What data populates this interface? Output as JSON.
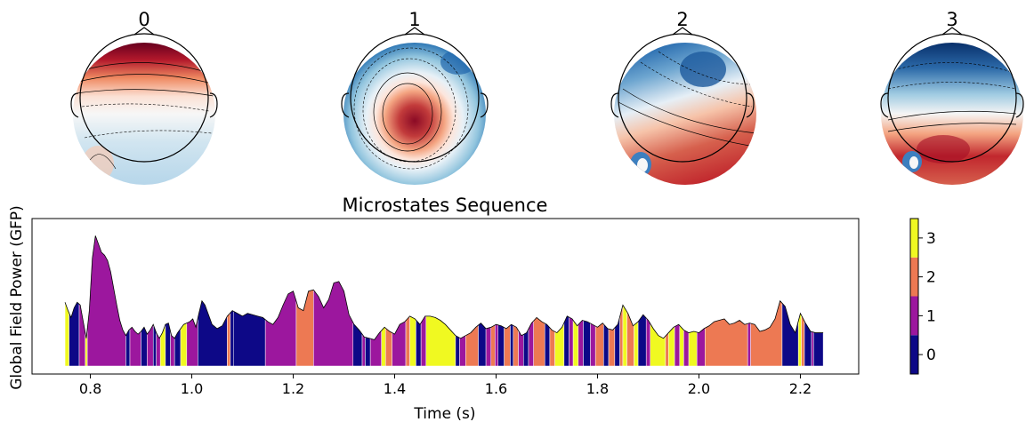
{
  "figure": {
    "topomaps": [
      {
        "label": "0",
        "pattern": "frontal-positive"
      },
      {
        "label": "1",
        "pattern": "central-positive"
      },
      {
        "label": "2",
        "pattern": "posterior-positive-anterior-negative"
      },
      {
        "label": "3",
        "pattern": "anterior-negative-posterior-positive"
      }
    ],
    "colormap_topomap": "RdBu_r",
    "colorbar": {
      "ticks": [
        "0",
        "1",
        "2",
        "3"
      ],
      "colors": [
        "#0d0887",
        "#9c179e",
        "#ed7953",
        "#f0f921"
      ]
    }
  },
  "chart_data": {
    "type": "area",
    "title": "Microstates Sequence",
    "xlabel": "Time (s)",
    "ylabel": "Global Field Power (GFP)",
    "xlim": [
      0.685,
      2.315
    ],
    "ylim": [
      0,
      1
    ],
    "xticks": [
      0.8,
      1.0,
      1.2,
      1.4,
      1.6,
      1.8,
      2.0,
      2.2
    ],
    "xtick_labels": [
      "0.8",
      "1.0",
      "1.2",
      "1.4",
      "1.6",
      "1.8",
      "2.0",
      "2.2"
    ],
    "state_colors": {
      "0": "#0d0887",
      "1": "#9c179e",
      "2": "#ed7953",
      "3": "#f0f921"
    },
    "gfp": {
      "x": [
        0.75,
        0.756,
        0.762,
        0.768,
        0.774,
        0.78,
        0.786,
        0.792,
        0.798,
        0.804,
        0.81,
        0.816,
        0.822,
        0.828,
        0.834,
        0.84,
        0.846,
        0.852,
        0.858,
        0.864,
        0.87,
        0.876,
        0.882,
        0.888,
        0.894,
        0.9,
        0.906,
        0.912,
        0.918,
        0.924,
        0.93,
        0.936,
        0.942,
        0.948,
        0.954,
        0.96,
        0.966,
        0.972,
        0.978,
        0.984,
        0.99,
        0.996,
        1.002,
        1.008,
        1.014,
        1.02,
        1.026,
        1.032,
        1.04,
        1.05,
        1.06,
        1.07,
        1.08,
        1.09,
        1.1,
        1.11,
        1.12,
        1.13,
        1.14,
        1.15,
        1.16,
        1.17,
        1.18,
        1.19,
        1.2,
        1.21,
        1.22,
        1.23,
        1.24,
        1.25,
        1.26,
        1.27,
        1.28,
        1.29,
        1.3,
        1.31,
        1.32,
        1.33,
        1.34,
        1.35,
        1.36,
        1.37,
        1.38,
        1.39,
        1.4,
        1.41,
        1.42,
        1.43,
        1.44,
        1.45,
        1.46,
        1.47,
        1.48,
        1.49,
        1.5,
        1.51,
        1.52,
        1.53,
        1.54,
        1.55,
        1.56,
        1.57,
        1.58,
        1.59,
        1.6,
        1.61,
        1.62,
        1.63,
        1.64,
        1.65,
        1.66,
        1.67,
        1.68,
        1.69,
        1.7,
        1.71,
        1.72,
        1.73,
        1.74,
        1.75,
        1.76,
        1.77,
        1.78,
        1.79,
        1.8,
        1.81,
        1.82,
        1.83,
        1.84,
        1.85,
        1.86,
        1.87,
        1.88,
        1.89,
        1.9,
        1.91,
        1.92,
        1.93,
        1.94,
        1.95,
        1.96,
        1.97,
        1.98,
        1.99,
        2.0,
        2.01,
        2.02,
        2.03,
        2.04,
        2.05,
        2.06,
        2.07,
        2.08,
        2.09,
        2.1,
        2.11,
        2.12,
        2.13,
        2.14,
        2.15,
        2.16,
        2.17,
        2.18,
        2.19,
        2.2,
        2.21,
        2.22,
        2.23,
        2.24,
        2.245
      ],
      "y": [
        0.46,
        0.4,
        0.35,
        0.42,
        0.46,
        0.44,
        0.32,
        0.2,
        0.4,
        0.78,
        0.94,
        0.88,
        0.82,
        0.8,
        0.76,
        0.68,
        0.56,
        0.44,
        0.33,
        0.26,
        0.22,
        0.26,
        0.28,
        0.25,
        0.23,
        0.25,
        0.28,
        0.23,
        0.26,
        0.3,
        0.24,
        0.2,
        0.24,
        0.3,
        0.31,
        0.22,
        0.2,
        0.24,
        0.27,
        0.3,
        0.31,
        0.32,
        0.34,
        0.28,
        0.38,
        0.47,
        0.44,
        0.38,
        0.3,
        0.27,
        0.29,
        0.36,
        0.4,
        0.38,
        0.36,
        0.38,
        0.37,
        0.36,
        0.35,
        0.32,
        0.3,
        0.35,
        0.44,
        0.52,
        0.54,
        0.42,
        0.4,
        0.54,
        0.55,
        0.5,
        0.42,
        0.48,
        0.6,
        0.61,
        0.54,
        0.37,
        0.3,
        0.26,
        0.21,
        0.2,
        0.19,
        0.24,
        0.28,
        0.25,
        0.23,
        0.3,
        0.32,
        0.36,
        0.34,
        0.3,
        0.36,
        0.36,
        0.35,
        0.33,
        0.3,
        0.26,
        0.22,
        0.2,
        0.22,
        0.24,
        0.28,
        0.31,
        0.27,
        0.28,
        0.3,
        0.29,
        0.27,
        0.3,
        0.28,
        0.22,
        0.24,
        0.31,
        0.35,
        0.32,
        0.3,
        0.26,
        0.24,
        0.28,
        0.36,
        0.34,
        0.29,
        0.33,
        0.32,
        0.3,
        0.28,
        0.31,
        0.27,
        0.26,
        0.3,
        0.44,
        0.38,
        0.29,
        0.32,
        0.37,
        0.33,
        0.27,
        0.22,
        0.2,
        0.24,
        0.28,
        0.3,
        0.26,
        0.24,
        0.25,
        0.24,
        0.27,
        0.29,
        0.32,
        0.33,
        0.34,
        0.3,
        0.31,
        0.33,
        0.3,
        0.31,
        0.3,
        0.25,
        0.26,
        0.28,
        0.34,
        0.47,
        0.43,
        0.3,
        0.24,
        0.38,
        0.31,
        0.25,
        0.24,
        0.24,
        0.24
      ]
    },
    "segments": [
      {
        "start": 0.75,
        "end": 0.758,
        "state": 3
      },
      {
        "start": 0.758,
        "end": 0.778,
        "state": 0
      },
      {
        "start": 0.778,
        "end": 0.79,
        "state": 1
      },
      {
        "start": 0.79,
        "end": 0.794,
        "state": 3
      },
      {
        "start": 0.794,
        "end": 0.87,
        "state": 1
      },
      {
        "start": 0.87,
        "end": 0.878,
        "state": 0
      },
      {
        "start": 0.878,
        "end": 0.9,
        "state": 1
      },
      {
        "start": 0.9,
        "end": 0.912,
        "state": 0
      },
      {
        "start": 0.912,
        "end": 0.924,
        "state": 1
      },
      {
        "start": 0.924,
        "end": 0.93,
        "state": 0
      },
      {
        "start": 0.93,
        "end": 0.938,
        "state": 1
      },
      {
        "start": 0.938,
        "end": 0.948,
        "state": 3
      },
      {
        "start": 0.948,
        "end": 0.958,
        "state": 0
      },
      {
        "start": 0.958,
        "end": 0.966,
        "state": 1
      },
      {
        "start": 0.966,
        "end": 0.978,
        "state": 0
      },
      {
        "start": 0.978,
        "end": 0.99,
        "state": 3
      },
      {
        "start": 0.99,
        "end": 1.012,
        "state": 1
      },
      {
        "start": 1.012,
        "end": 1.07,
        "state": 0
      },
      {
        "start": 1.07,
        "end": 1.076,
        "state": 2
      },
      {
        "start": 1.076,
        "end": 1.082,
        "state": 0
      },
      {
        "start": 1.082,
        "end": 1.145,
        "state": 0
      },
      {
        "start": 1.145,
        "end": 1.206,
        "state": 1
      },
      {
        "start": 1.206,
        "end": 1.24,
        "state": 2
      },
      {
        "start": 1.24,
        "end": 1.318,
        "state": 1
      },
      {
        "start": 1.318,
        "end": 1.336,
        "state": 0
      },
      {
        "start": 1.336,
        "end": 1.342,
        "state": 1
      },
      {
        "start": 1.342,
        "end": 1.352,
        "state": 0
      },
      {
        "start": 1.352,
        "end": 1.374,
        "state": 1
      },
      {
        "start": 1.374,
        "end": 1.382,
        "state": 3
      },
      {
        "start": 1.382,
        "end": 1.395,
        "state": 2
      },
      {
        "start": 1.395,
        "end": 1.422,
        "state": 1
      },
      {
        "start": 1.422,
        "end": 1.43,
        "state": 2
      },
      {
        "start": 1.43,
        "end": 1.442,
        "state": 3
      },
      {
        "start": 1.442,
        "end": 1.452,
        "state": 0
      },
      {
        "start": 1.452,
        "end": 1.462,
        "state": 1
      },
      {
        "start": 1.462,
        "end": 1.52,
        "state": 3
      },
      {
        "start": 1.52,
        "end": 1.528,
        "state": 0
      },
      {
        "start": 1.528,
        "end": 1.54,
        "state": 1
      },
      {
        "start": 1.54,
        "end": 1.565,
        "state": 2
      },
      {
        "start": 1.565,
        "end": 1.58,
        "state": 0
      },
      {
        "start": 1.58,
        "end": 1.59,
        "state": 1
      },
      {
        "start": 1.59,
        "end": 1.598,
        "state": 2
      },
      {
        "start": 1.598,
        "end": 1.604,
        "state": 1
      },
      {
        "start": 1.604,
        "end": 1.616,
        "state": 0
      },
      {
        "start": 1.616,
        "end": 1.628,
        "state": 2
      },
      {
        "start": 1.628,
        "end": 1.634,
        "state": 0
      },
      {
        "start": 1.634,
        "end": 1.644,
        "state": 2
      },
      {
        "start": 1.644,
        "end": 1.654,
        "state": 1
      },
      {
        "start": 1.654,
        "end": 1.664,
        "state": 0
      },
      {
        "start": 1.664,
        "end": 1.674,
        "state": 1
      },
      {
        "start": 1.674,
        "end": 1.696,
        "state": 2
      },
      {
        "start": 1.696,
        "end": 1.706,
        "state": 0
      },
      {
        "start": 1.706,
        "end": 1.716,
        "state": 2
      },
      {
        "start": 1.716,
        "end": 1.734,
        "state": 3
      },
      {
        "start": 1.734,
        "end": 1.744,
        "state": 0
      },
      {
        "start": 1.744,
        "end": 1.752,
        "state": 1
      },
      {
        "start": 1.752,
        "end": 1.762,
        "state": 3
      },
      {
        "start": 1.762,
        "end": 1.772,
        "state": 1
      },
      {
        "start": 1.772,
        "end": 1.786,
        "state": 0
      },
      {
        "start": 1.786,
        "end": 1.796,
        "state": 1
      },
      {
        "start": 1.796,
        "end": 1.812,
        "state": 2
      },
      {
        "start": 1.812,
        "end": 1.822,
        "state": 0
      },
      {
        "start": 1.822,
        "end": 1.834,
        "state": 2
      },
      {
        "start": 1.834,
        "end": 1.844,
        "state": 0
      },
      {
        "start": 1.844,
        "end": 1.85,
        "state": 2
      },
      {
        "start": 1.85,
        "end": 1.858,
        "state": 3
      },
      {
        "start": 1.858,
        "end": 1.872,
        "state": 2
      },
      {
        "start": 1.872,
        "end": 1.88,
        "state": 3
      },
      {
        "start": 1.88,
        "end": 1.896,
        "state": 0
      },
      {
        "start": 1.896,
        "end": 1.904,
        "state": 1
      },
      {
        "start": 1.904,
        "end": 1.934,
        "state": 3
      },
      {
        "start": 1.934,
        "end": 1.94,
        "state": 2
      },
      {
        "start": 1.94,
        "end": 1.952,
        "state": 3
      },
      {
        "start": 1.952,
        "end": 1.962,
        "state": 1
      },
      {
        "start": 1.962,
        "end": 1.97,
        "state": 3
      },
      {
        "start": 1.97,
        "end": 1.98,
        "state": 1
      },
      {
        "start": 1.98,
        "end": 1.996,
        "state": 3
      },
      {
        "start": 1.996,
        "end": 2.012,
        "state": 1
      },
      {
        "start": 2.012,
        "end": 2.096,
        "state": 2
      },
      {
        "start": 2.096,
        "end": 2.102,
        "state": 1
      },
      {
        "start": 2.102,
        "end": 2.164,
        "state": 2
      },
      {
        "start": 2.164,
        "end": 2.196,
        "state": 0
      },
      {
        "start": 2.196,
        "end": 2.202,
        "state": 3
      },
      {
        "start": 2.202,
        "end": 2.208,
        "state": 2
      },
      {
        "start": 2.208,
        "end": 2.222,
        "state": 0
      },
      {
        "start": 2.222,
        "end": 2.226,
        "state": 1
      },
      {
        "start": 2.226,
        "end": 2.245,
        "state": 0
      }
    ]
  }
}
